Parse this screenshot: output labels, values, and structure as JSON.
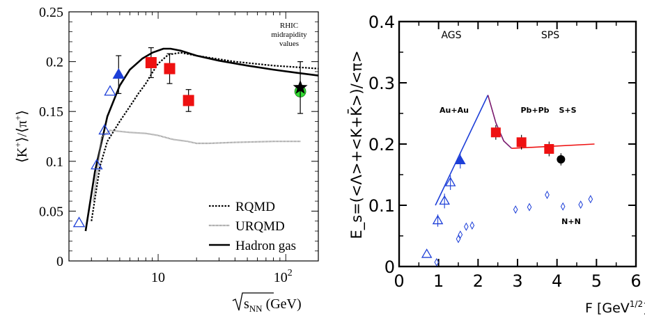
{
  "chart_data": [
    {
      "type": "scatter",
      "x_scale": "log",
      "xlim": [
        2,
        180
      ],
      "ylim": [
        0,
        0.25
      ],
      "y_ticks": [
        "0",
        "0.05",
        "0.1",
        "0.15",
        "0.2",
        "0.25"
      ],
      "x_tick_labels": [
        {
          "base": "10",
          "exp": ""
        },
        {
          "base": "10",
          "exp": "2"
        }
      ],
      "ylabel": {
        "pre": "⟨K",
        "sup1": "+",
        "mid": "⟩/⟨π",
        "sup2": "+",
        "post": "⟩"
      },
      "xlabel": {
        "radicand": "s",
        "sub": "NN",
        "unit": " (GeV)"
      },
      "annotation": [
        "RHIC",
        "midrapidity",
        "values"
      ],
      "legend": {
        "placement": "bottom-right",
        "entries": [
          {
            "label": "RQMD",
            "style": "dotted"
          },
          {
            "label": "URQMD",
            "style": "fine-dotted"
          },
          {
            "label": "Hadron gas",
            "style": "solid"
          }
        ]
      },
      "colors": {
        "blue": "#1d3fd8",
        "red": "#ee1111",
        "green": "#33dd33",
        "black": "#000000"
      },
      "series": [
        {
          "marker": "open-triangle",
          "color": "#1d3fd8",
          "points": [
            {
              "x": 2.4,
              "y": 0.038
            },
            {
              "x": 3.3,
              "y": 0.096
            },
            {
              "x": 3.8,
              "y": 0.131
            },
            {
              "x": 4.2,
              "y": 0.17
            }
          ]
        },
        {
          "marker": "filled-triangle",
          "color": "#1d3fd8",
          "points": [
            {
              "x": 4.9,
              "y": 0.187,
              "err": 0.019
            }
          ]
        },
        {
          "marker": "filled-square",
          "color": "#ee1111",
          "points": [
            {
              "x": 8.8,
              "y": 0.199,
              "err": 0.015
            },
            {
              "x": 12.3,
              "y": 0.193,
              "err": 0.015
            },
            {
              "x": 17.3,
              "y": 0.161,
              "err": 0.011
            }
          ]
        },
        {
          "marker": "green-circle",
          "color": "#33dd33",
          "points": [
            {
              "x": 130,
              "y": 0.17
            }
          ]
        },
        {
          "marker": "star",
          "color": "#000000",
          "points": [
            {
              "x": 130,
              "y": 0.174,
              "err": 0.026
            }
          ]
        }
      ],
      "curves": [
        {
          "name": "Hadron gas",
          "style": "solid",
          "x": [
            2.7,
            3.2,
            4,
            5,
            6,
            7.5,
            9,
            11,
            12.5,
            15,
            20,
            30,
            50,
            80,
            120,
            180
          ],
          "y": [
            0.03,
            0.09,
            0.145,
            0.176,
            0.192,
            0.203,
            0.209,
            0.213,
            0.213,
            0.211,
            0.206,
            0.201,
            0.196,
            0.192,
            0.189,
            0.186
          ]
        },
        {
          "name": "RQMD",
          "style": "dotted",
          "x": [
            3,
            3.5,
            4,
            5,
            6,
            7,
            8,
            9,
            10,
            12,
            15,
            20,
            40,
            80,
            180
          ],
          "y": [
            0.04,
            0.095,
            0.12,
            0.14,
            0.155,
            0.168,
            0.178,
            0.189,
            0.198,
            0.207,
            0.209,
            0.206,
            0.2,
            0.196,
            0.193
          ]
        },
        {
          "name": "URQMD",
          "style": "fine-dotted",
          "x": [
            3.1,
            3.6,
            4.2,
            5,
            6,
            8,
            10,
            13,
            17,
            20,
            25,
            40,
            80,
            130
          ],
          "y": [
            0.06,
            0.124,
            0.131,
            0.13,
            0.129,
            0.128,
            0.126,
            0.122,
            0.12,
            0.118,
            0.118,
            0.119,
            0.12,
            0.12
          ]
        }
      ]
    },
    {
      "type": "scatter",
      "xlim": [
        0,
        6
      ],
      "ylim": [
        0,
        0.4
      ],
      "x_ticks": [
        "0",
        "1",
        "2",
        "3",
        "4",
        "5",
        "6"
      ],
      "y_ticks": [
        "0",
        "0.1",
        "0.2",
        "0.3",
        "0.4"
      ],
      "ylabel": "E_s=(<Λ>+<K+K̄>)/<π>",
      "xlabel": {
        "base": "F [GeV",
        "sup": "1/2",
        "post": "]"
      },
      "annotations": [
        "AGS",
        "SPS",
        "Au+Au",
        "Pb+Pb",
        "S+S",
        "N+N"
      ],
      "colors": {
        "blue": "#1d3fd8",
        "red": "#ee1111",
        "purple": "#7a1a6e",
        "black": "#000000"
      },
      "series": [
        {
          "marker": "open-triangle",
          "color": "#1d3fd8",
          "points": [
            {
              "x": 0.7,
              "y": 0.02
            },
            {
              "x": 0.98,
              "y": 0.075,
              "err": 0.01
            },
            {
              "x": 1.15,
              "y": 0.107,
              "err": 0.012
            },
            {
              "x": 1.3,
              "y": 0.137,
              "err": 0.012
            }
          ]
        },
        {
          "marker": "filled-triangle",
          "color": "#1d3fd8",
          "points": [
            {
              "x": 1.55,
              "y": 0.173,
              "err": 0.013
            }
          ]
        },
        {
          "marker": "filled-square",
          "color": "#ee1111",
          "points": [
            {
              "x": 2.45,
              "y": 0.219,
              "err": 0.012
            },
            {
              "x": 3.1,
              "y": 0.203,
              "err": 0.012
            },
            {
              "x": 3.8,
              "y": 0.192,
              "err": 0.012
            }
          ]
        },
        {
          "marker": "filled-circle",
          "color": "#000000",
          "points": [
            {
              "x": 4.1,
              "y": 0.175,
              "err": 0.01
            }
          ]
        },
        {
          "marker": "open-diamond",
          "color": "#1d3fd8",
          "points": [
            {
              "x": 0.95,
              "y": 0.007
            },
            {
              "x": 1.5,
              "y": 0.045
            },
            {
              "x": 1.55,
              "y": 0.052
            },
            {
              "x": 1.7,
              "y": 0.065
            },
            {
              "x": 1.85,
              "y": 0.067
            },
            {
              "x": 2.95,
              "y": 0.093
            },
            {
              "x": 3.3,
              "y": 0.097
            },
            {
              "x": 3.75,
              "y": 0.117
            },
            {
              "x": 4.15,
              "y": 0.098
            },
            {
              "x": 4.6,
              "y": 0.101
            },
            {
              "x": 4.85,
              "y": 0.11
            }
          ]
        }
      ],
      "curves": [
        {
          "color": "#1d3fd8",
          "x": [
            0.92,
            2.25
          ],
          "y": [
            0.1,
            0.28
          ]
        },
        {
          "color": "#7a1a6e",
          "x": [
            2.25,
            2.45,
            2.65,
            2.85
          ],
          "y": [
            0.28,
            0.235,
            0.205,
            0.193
          ]
        },
        {
          "color": "#ee1111",
          "x": [
            2.85,
            4.95
          ],
          "y": [
            0.193,
            0.2
          ]
        }
      ]
    }
  ]
}
